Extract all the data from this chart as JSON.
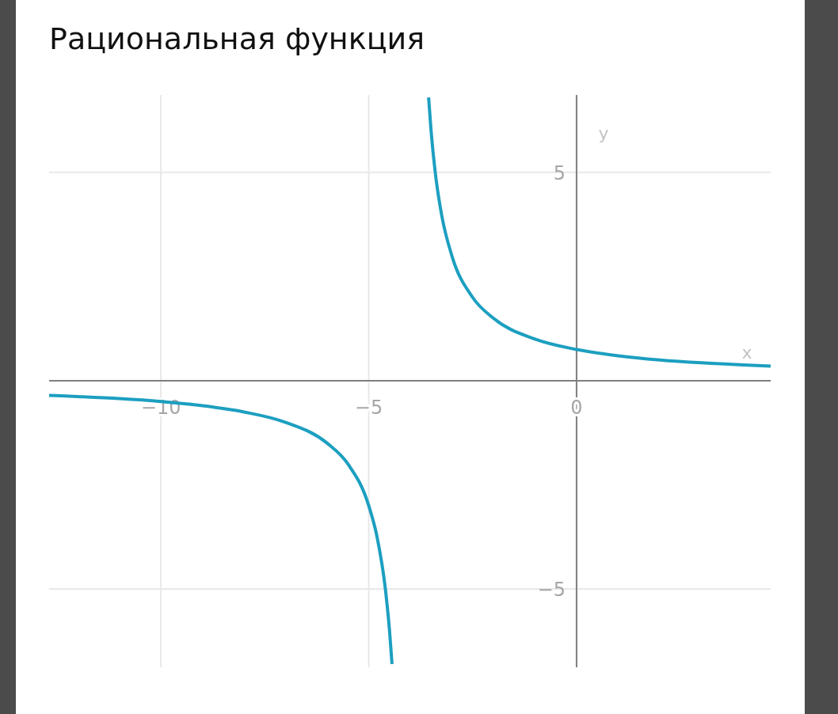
{
  "chart_data": {
    "type": "line",
    "title": "Рациональная функция",
    "xlabel": "x",
    "ylabel": "y",
    "x": [
      -12.69,
      -12,
      -11,
      -10,
      -9,
      -8,
      -7,
      -6,
      -5.5,
      -5,
      -4.8,
      -4.6,
      -4.5,
      -4.44,
      -4,
      -3.56,
      -3.5,
      -3.4,
      -3.25,
      -3,
      -2.5,
      -2,
      -1,
      0,
      1,
      2,
      3,
      4,
      4.67
    ],
    "series": [
      {
        "color": "#1c9fc0",
        "values": [
          -0.35,
          -0.38,
          -0.43,
          -0.5,
          -0.6,
          -0.75,
          -1,
          -1.5,
          -2,
          -3,
          -3.75,
          -5,
          -6,
          -6.8,
          null,
          6.8,
          6,
          5,
          4,
          3,
          2,
          1.5,
          1,
          0.75,
          0.6,
          0.5,
          0.43,
          0.38,
          0.35
        ]
      }
    ],
    "xlim": [
      -12.69,
      4.67
    ],
    "ylim": [
      -6.88,
      6.86
    ],
    "xticks": [
      -10,
      -5,
      0
    ],
    "yticks": [
      -5,
      5
    ],
    "grid": true,
    "marker": "none",
    "line_style": "solid"
  }
}
